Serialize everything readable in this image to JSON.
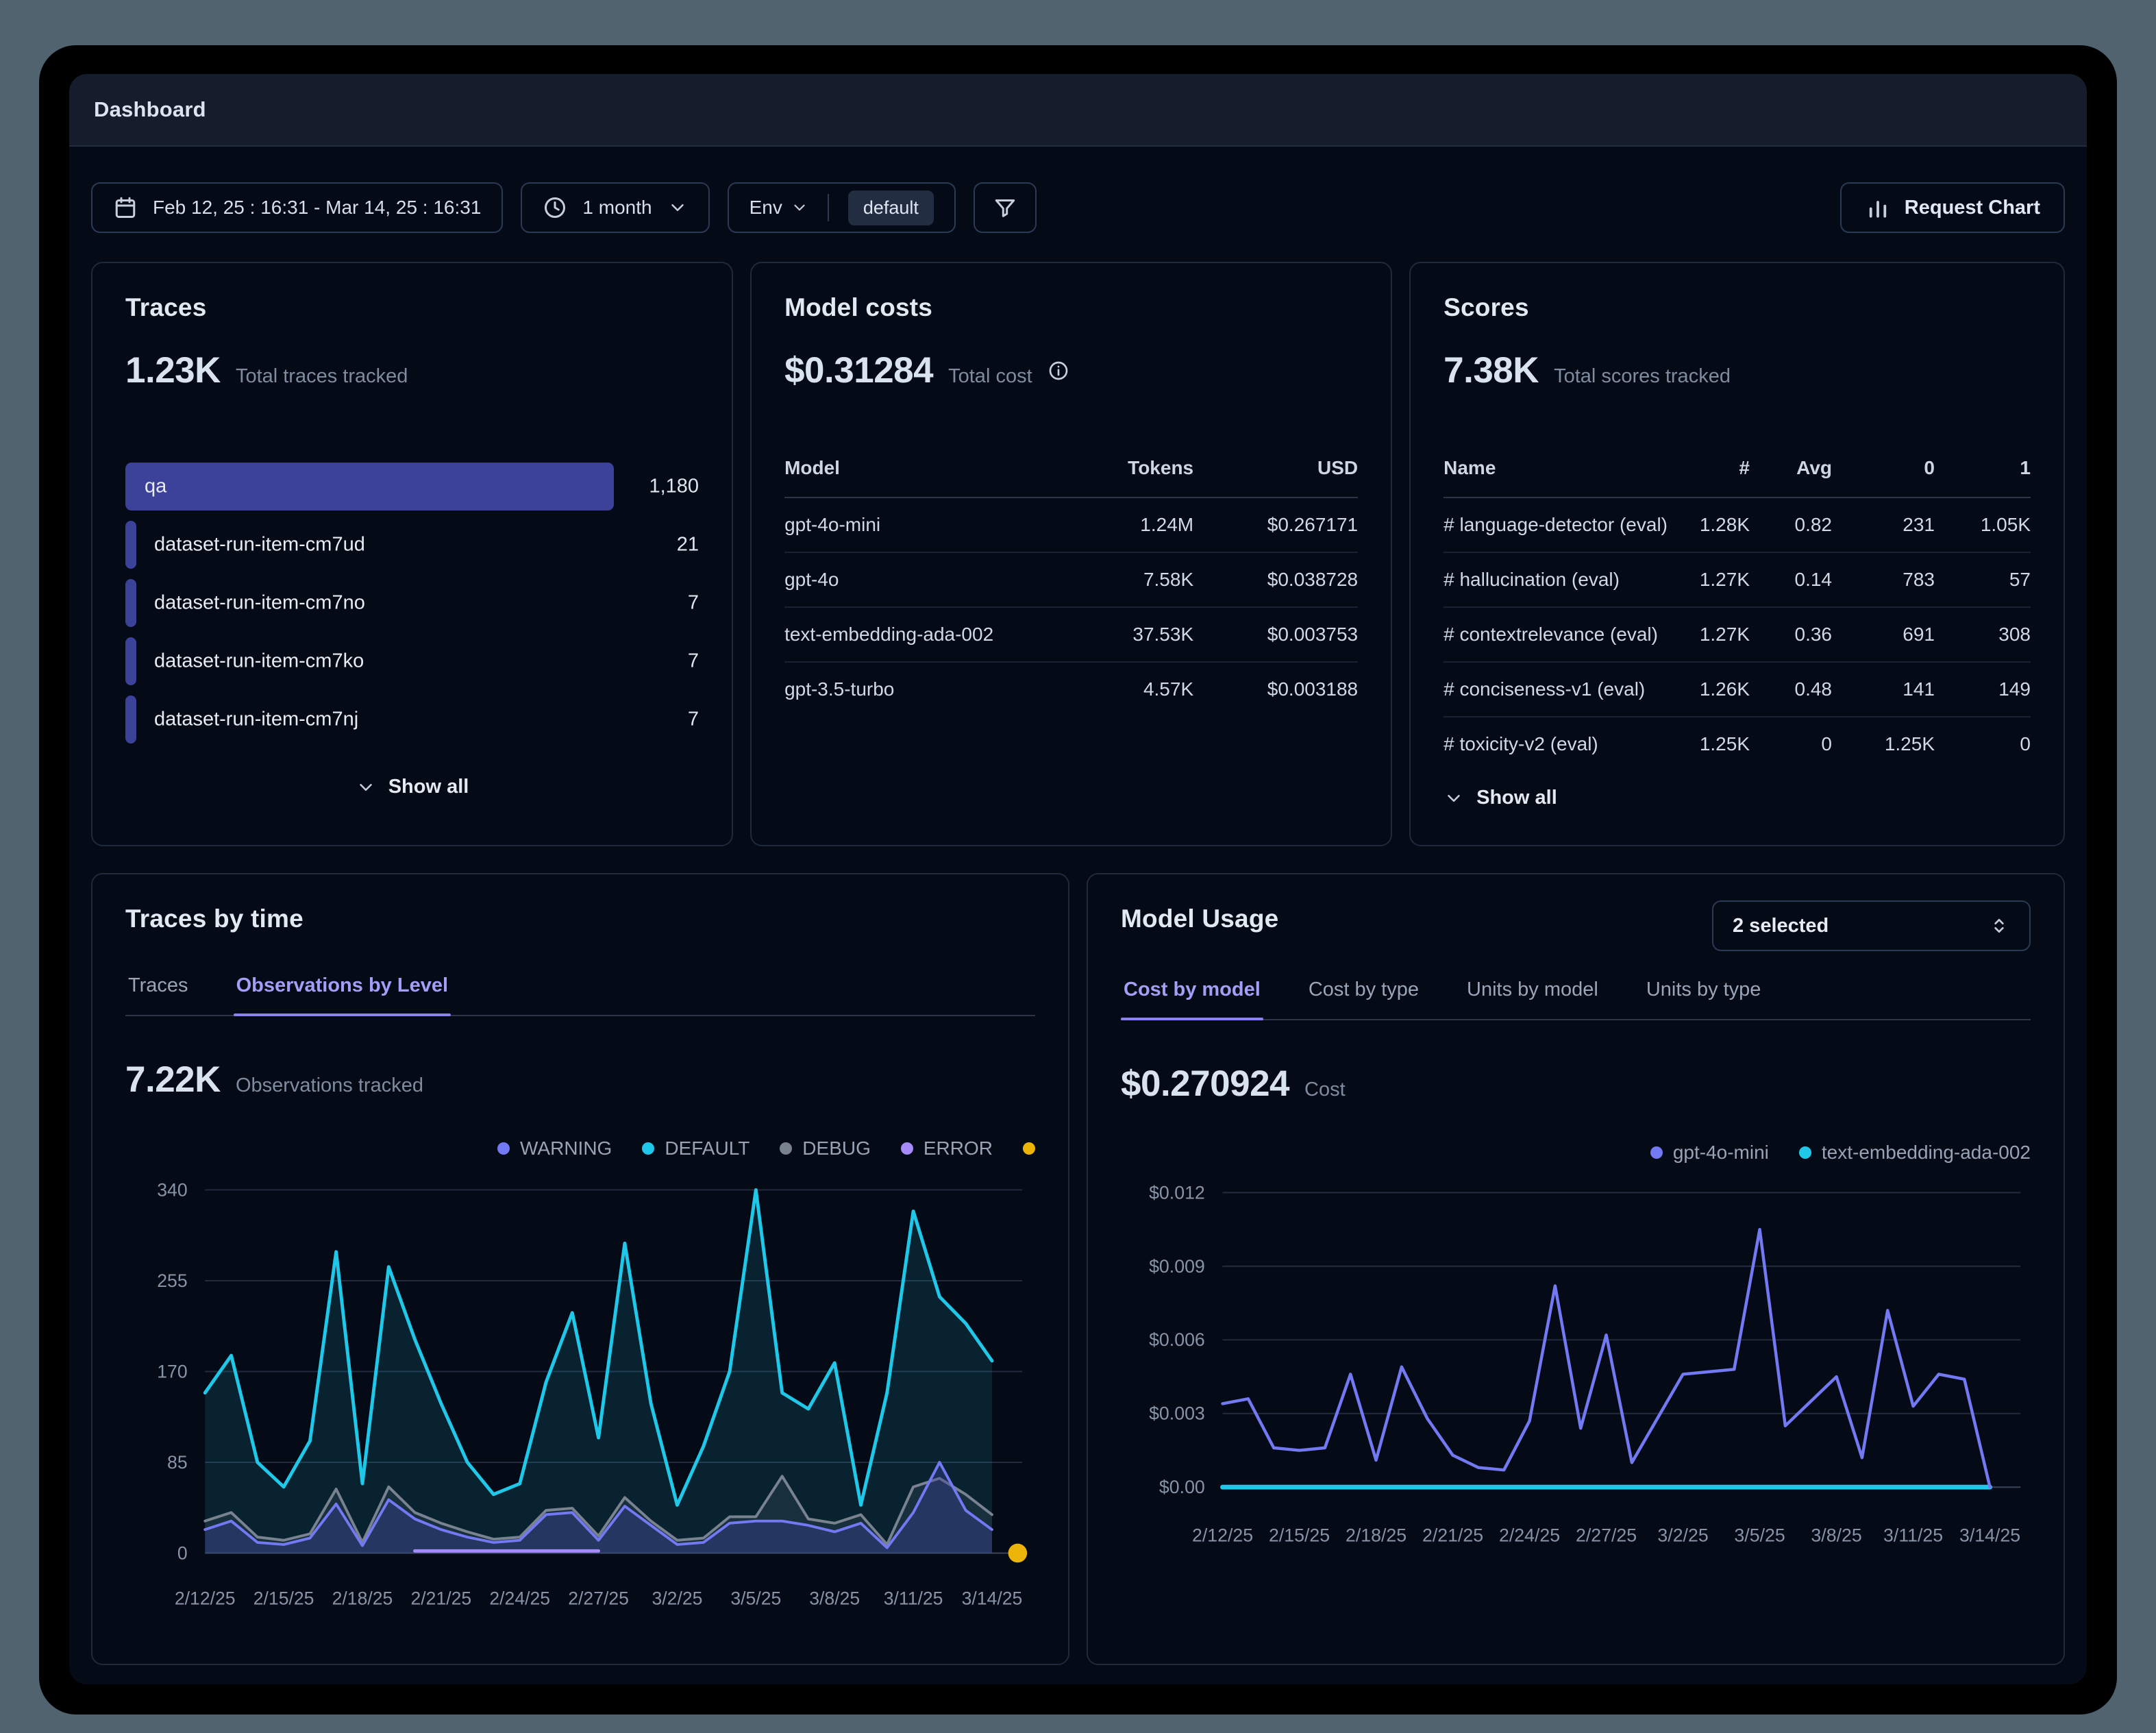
{
  "header": {
    "title": "Dashboard"
  },
  "filters": {
    "date_range": "Feb 12, 25 : 16:31 - Mar 14, 25 : 16:31",
    "interval": "1 month",
    "env_label": "Env",
    "env_value": "default",
    "request_chart_label": "Request Chart"
  },
  "traces_card": {
    "title": "Traces",
    "total": "1.23K",
    "total_label": "Total traces tracked",
    "rows": [
      {
        "name": "qa",
        "value": "1,180"
      },
      {
        "name": "dataset-run-item-cm7ud",
        "value": "21"
      },
      {
        "name": "dataset-run-item-cm7no",
        "value": "7"
      },
      {
        "name": "dataset-run-item-cm7ko",
        "value": "7"
      },
      {
        "name": "dataset-run-item-cm7nj",
        "value": "7"
      }
    ],
    "show_all": "Show all"
  },
  "model_costs_card": {
    "title": "Model costs",
    "total": "$0.31284",
    "total_label": "Total cost",
    "columns": [
      "Model",
      "Tokens",
      "USD"
    ],
    "rows": [
      [
        "gpt-4o-mini",
        "1.24M",
        "$0.267171"
      ],
      [
        "gpt-4o",
        "7.58K",
        "$0.038728"
      ],
      [
        "text-embedding-ada-002",
        "37.53K",
        "$0.003753"
      ],
      [
        "gpt-3.5-turbo",
        "4.57K",
        "$0.003188"
      ]
    ]
  },
  "scores_card": {
    "title": "Scores",
    "total": "7.38K",
    "total_label": "Total scores tracked",
    "columns": [
      "Name",
      "#",
      "Avg",
      "0",
      "1"
    ],
    "rows": [
      [
        "# language-detector (eval)",
        "1.28K",
        "0.82",
        "231",
        "1.05K"
      ],
      [
        "# hallucination (eval)",
        "1.27K",
        "0.14",
        "783",
        "57"
      ],
      [
        "# contextrelevance (eval)",
        "1.27K",
        "0.36",
        "691",
        "308"
      ],
      [
        "# conciseness-v1 (eval)",
        "1.26K",
        "0.48",
        "141",
        "149"
      ],
      [
        "# toxicity-v2 (eval)",
        "1.25K",
        "0",
        "1.25K",
        "0"
      ]
    ],
    "show_all": "Show all"
  },
  "traces_by_time_card": {
    "title": "Traces by time",
    "tabs": [
      "Traces",
      "Observations by Level"
    ],
    "active_tab": "Observations by Level",
    "total": "7.22K",
    "total_label": "Observations tracked"
  },
  "model_usage_card": {
    "title": "Model Usage",
    "selector_value": "2 selected",
    "tabs": [
      "Cost by model",
      "Cost by type",
      "Units by model",
      "Units by type"
    ],
    "active_tab": "Cost by model",
    "total": "$0.270924",
    "total_label": "Cost"
  },
  "chart_data": [
    {
      "id": "observations-by-level",
      "type": "line",
      "title": "Observations by Level",
      "x_points": 31,
      "x_range": [
        "2/12/25",
        "3/14/25"
      ],
      "ylim": [
        0,
        340
      ],
      "grid": true,
      "legend_position": "top-right",
      "yticks": [
        {
          "v": 0,
          "label": "0"
        },
        {
          "v": 85,
          "label": "85"
        },
        {
          "v": 170,
          "label": "170"
        },
        {
          "v": 255,
          "label": "255"
        },
        {
          "v": 340,
          "label": "340"
        }
      ],
      "xticks": [
        {
          "i": 0,
          "label": "2/12/25"
        },
        {
          "i": 3,
          "label": "2/15/25"
        },
        {
          "i": 6,
          "label": "2/18/25"
        },
        {
          "i": 9,
          "label": "2/21/25"
        },
        {
          "i": 12,
          "label": "2/24/25"
        },
        {
          "i": 15,
          "label": "2/27/25"
        },
        {
          "i": 18,
          "label": "3/2/25"
        },
        {
          "i": 21,
          "label": "3/5/25"
        },
        {
          "i": 24,
          "label": "3/8/25"
        },
        {
          "i": 27,
          "label": "3/11/25"
        },
        {
          "i": 30,
          "label": "3/14/25"
        }
      ],
      "legend": [
        {
          "name": "WARNING",
          "color": "#7379f2"
        },
        {
          "name": "DEFAULT",
          "color": "#1fc8e8"
        },
        {
          "name": "DEBUG",
          "color": "#79828f"
        },
        {
          "name": "ERROR",
          "color": "#a78bfa"
        },
        {
          "name": "",
          "color": "#edb408"
        }
      ],
      "series": [
        {
          "name": "DEFAULT",
          "color": "#1fc8e8",
          "width": 5,
          "fill": "rgba(31,180,210,0.14)",
          "values": [
            150,
            185,
            85,
            62,
            105,
            282,
            65,
            268,
            200,
            140,
            85,
            55,
            65,
            160,
            225,
            108,
            290,
            140,
            45,
            100,
            170,
            340,
            150,
            135,
            178,
            45,
            150,
            320,
            240,
            215,
            180
          ]
        },
        {
          "name": "DEBUG",
          "color": "#79828f",
          "width": 4,
          "fill": "rgba(100,112,130,0.18)",
          "values": [
            30,
            38,
            15,
            12,
            18,
            60,
            10,
            62,
            38,
            28,
            20,
            13,
            15,
            40,
            42,
            16,
            52,
            30,
            12,
            14,
            34,
            34,
            72,
            32,
            28,
            36,
            8,
            62,
            70,
            55,
            36
          ]
        },
        {
          "name": "WARNING",
          "color": "#7379f2",
          "width": 4,
          "fill": "rgba(60,66,153,0.38)",
          "values": [
            22,
            30,
            10,
            8,
            14,
            46,
            7,
            50,
            32,
            22,
            15,
            10,
            12,
            36,
            38,
            12,
            44,
            26,
            8,
            10,
            28,
            30,
            30,
            26,
            20,
            28,
            5,
            38,
            85,
            40,
            22
          ]
        },
        {
          "name": "ERROR",
          "color": "#a78bfa",
          "width": 5,
          "values": [
            null,
            null,
            null,
            null,
            null,
            null,
            null,
            null,
            2,
            2,
            2,
            2,
            2,
            2,
            2,
            2,
            null,
            null,
            null,
            null,
            null,
            null,
            null,
            null,
            null,
            null,
            null,
            null,
            null,
            null,
            null
          ]
        }
      ],
      "markers": [
        {
          "index": 30,
          "value": 0,
          "color": "#edb408",
          "r": 14,
          "dx": 38
        }
      ]
    },
    {
      "id": "cost-by-model",
      "type": "line",
      "title": "Cost by model",
      "x_points": 31,
      "x_range": [
        "2/12/25",
        "3/14/25"
      ],
      "ylim": [
        0,
        0.012
      ],
      "grid": true,
      "legend_position": "top-right",
      "yticks": [
        {
          "v": 0,
          "label": "$0.00"
        },
        {
          "v": 0.003,
          "label": "$0.003"
        },
        {
          "v": 0.006,
          "label": "$0.006"
        },
        {
          "v": 0.009,
          "label": "$0.009"
        },
        {
          "v": 0.012,
          "label": "$0.012"
        }
      ],
      "xticks": [
        {
          "i": 0,
          "label": "2/12/25"
        },
        {
          "i": 3,
          "label": "2/15/25"
        },
        {
          "i": 6,
          "label": "2/18/25"
        },
        {
          "i": 9,
          "label": "2/21/25"
        },
        {
          "i": 12,
          "label": "2/24/25"
        },
        {
          "i": 15,
          "label": "2/27/25"
        },
        {
          "i": 18,
          "label": "3/2/25"
        },
        {
          "i": 21,
          "label": "3/5/25"
        },
        {
          "i": 24,
          "label": "3/8/25"
        },
        {
          "i": 27,
          "label": "3/11/25"
        },
        {
          "i": 30,
          "label": "3/14/25"
        }
      ],
      "legend": [
        {
          "name": "gpt-4o-mini",
          "color": "#7379f2"
        },
        {
          "name": "text-embedding-ada-002",
          "color": "#1fc8e8"
        }
      ],
      "series": [
        {
          "name": "text-embedding-ada-002",
          "color": "#1fc8e8",
          "width": 7,
          "values": [
            0,
            0,
            0,
            0,
            0,
            0,
            0,
            0,
            0,
            0,
            0,
            0,
            0,
            0,
            0,
            0,
            0,
            0,
            0,
            0,
            0,
            0,
            0,
            0,
            0,
            0,
            0,
            0,
            0,
            0,
            0
          ]
        },
        {
          "name": "gpt-4o-mini",
          "color": "#7379f2",
          "width": 4.5,
          "values": [
            0.0034,
            0.0036,
            0.0016,
            0.0015,
            0.0016,
            0.0046,
            0.0011,
            0.0049,
            0.0028,
            0.0013,
            0.0008,
            0.0007,
            0.0027,
            0.0082,
            0.0024,
            0.0062,
            0.001,
            0.0028,
            0.0046,
            0.0047,
            0.0048,
            0.0105,
            0.0025,
            0.0035,
            0.0045,
            0.0012,
            0.0072,
            0.0033,
            0.0046,
            0.0044,
            0.0
          ]
        }
      ],
      "markers": []
    }
  ]
}
